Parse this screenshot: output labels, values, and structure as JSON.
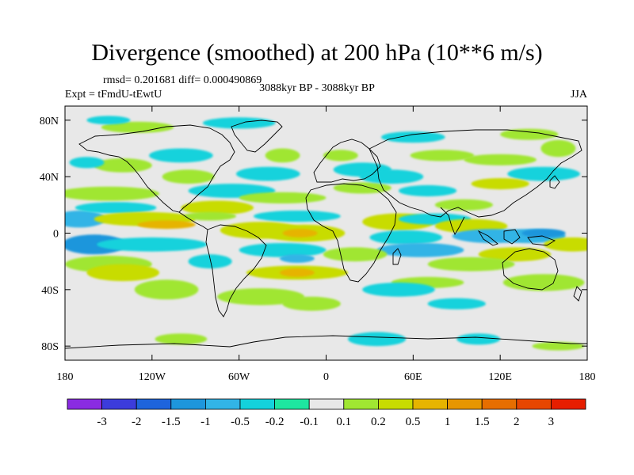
{
  "title": "Divergence (smoothed) at 200 hPa (10**6 m/s)",
  "stats": "rmsd= 0.201681  diff= 0.000490869",
  "left_label": "Expt = tFmdU-tEwtU",
  "center_label": "3088kyr BP - 3088kyr BP",
  "right_label": "JJA",
  "chart_data": {
    "type": "heatmap",
    "title": "Divergence (smoothed) at 200 hPa (10**6 m/s)",
    "xlabel": "",
    "ylabel": "",
    "xlim": [
      -180,
      180
    ],
    "ylim": [
      -90,
      90
    ],
    "x_ticks": [
      {
        "value": -180,
        "label": "180"
      },
      {
        "value": -120,
        "label": "120W"
      },
      {
        "value": -60,
        "label": "60W"
      },
      {
        "value": 0,
        "label": "0"
      },
      {
        "value": 60,
        "label": "60E"
      },
      {
        "value": 120,
        "label": "120E"
      },
      {
        "value": 180,
        "label": "180"
      }
    ],
    "y_ticks": [
      {
        "value": 80,
        "label": "80N"
      },
      {
        "value": 40,
        "label": "40N"
      },
      {
        "value": 0,
        "label": "0"
      },
      {
        "value": -40,
        "label": "40S"
      },
      {
        "value": -80,
        "label": "80S"
      }
    ],
    "colorbar": {
      "colors": [
        "#8a2be2",
        "#3c3cdc",
        "#1e64dc",
        "#1e96dc",
        "#32b4e6",
        "#14d2dc",
        "#1ee6a0",
        "#e8e8e8",
        "#a0e632",
        "#c8dc00",
        "#e6b400",
        "#e69600",
        "#e66e00",
        "#e64600",
        "#e61e00"
      ],
      "levels": [
        "-3",
        "-2",
        "-1.5",
        "-1",
        "-0.5",
        "-0.2",
        "-0.1",
        "0.1",
        "0.2",
        "0.5",
        "1",
        "1.5",
        "2",
        "3"
      ]
    },
    "background_color": "#e8e8e8",
    "features": [
      {
        "lon": -170,
        "lat": 10,
        "rx": 18,
        "ry": 6,
        "level": -0.5
      },
      {
        "lon": -160,
        "lat": -8,
        "rx": 22,
        "ry": 7,
        "level": -1
      },
      {
        "lon": -145,
        "lat": 18,
        "rx": 28,
        "ry": 4,
        "level": -0.2
      },
      {
        "lon": -150,
        "lat": 28,
        "rx": 35,
        "ry": 5,
        "level": 0.2
      },
      {
        "lon": -125,
        "lat": 10,
        "rx": 35,
        "ry": 5,
        "level": 0.5
      },
      {
        "lon": -110,
        "lat": 6,
        "rx": 20,
        "ry": 3,
        "level": 1
      },
      {
        "lon": -150,
        "lat": -22,
        "rx": 30,
        "ry": 6,
        "level": 0.2
      },
      {
        "lon": -140,
        "lat": -28,
        "rx": 25,
        "ry": 6,
        "level": 0.5
      },
      {
        "lon": -120,
        "lat": -8,
        "rx": 38,
        "ry": 5,
        "level": -0.2
      },
      {
        "lon": -110,
        "lat": -40,
        "rx": 22,
        "ry": 7,
        "level": 0.2
      },
      {
        "lon": -140,
        "lat": 48,
        "rx": 20,
        "ry": 5,
        "level": 0.2
      },
      {
        "lon": -165,
        "lat": 50,
        "rx": 12,
        "ry": 4,
        "level": -0.2
      },
      {
        "lon": -100,
        "lat": 55,
        "rx": 22,
        "ry": 5,
        "level": -0.2
      },
      {
        "lon": -95,
        "lat": 40,
        "rx": 18,
        "ry": 5,
        "level": 0.2
      },
      {
        "lon": -75,
        "lat": 18,
        "rx": 25,
        "ry": 5,
        "level": 0.5
      },
      {
        "lon": -80,
        "lat": 12,
        "rx": 18,
        "ry": 3,
        "level": 0.2
      },
      {
        "lon": -65,
        "lat": 30,
        "rx": 30,
        "ry": 5,
        "level": -0.2
      },
      {
        "lon": -40,
        "lat": 42,
        "rx": 22,
        "ry": 5,
        "level": -0.2
      },
      {
        "lon": -30,
        "lat": 55,
        "rx": 12,
        "ry": 5,
        "level": 0.2
      },
      {
        "lon": -60,
        "lat": 78,
        "rx": 25,
        "ry": 4,
        "level": -0.2
      },
      {
        "lon": -130,
        "lat": 75,
        "rx": 25,
        "ry": 4,
        "level": 0.2
      },
      {
        "lon": -30,
        "lat": 25,
        "rx": 30,
        "ry": 4,
        "level": 0.2
      },
      {
        "lon": -20,
        "lat": 12,
        "rx": 30,
        "ry": 4,
        "level": -0.2
      },
      {
        "lon": -45,
        "lat": 2,
        "rx": 28,
        "ry": 6,
        "level": 0.5
      },
      {
        "lon": -15,
        "lat": 0,
        "rx": 28,
        "ry": 6,
        "level": 0.5
      },
      {
        "lon": -18,
        "lat": 0,
        "rx": 12,
        "ry": 3,
        "level": 1
      },
      {
        "lon": -30,
        "lat": -12,
        "rx": 30,
        "ry": 5,
        "level": -0.2
      },
      {
        "lon": -20,
        "lat": -18,
        "rx": 12,
        "ry": 3,
        "level": -0.5
      },
      {
        "lon": -20,
        "lat": -28,
        "rx": 35,
        "ry": 5,
        "level": 0.5
      },
      {
        "lon": -20,
        "lat": -28,
        "rx": 12,
        "ry": 3,
        "level": 1
      },
      {
        "lon": -45,
        "lat": -45,
        "rx": 30,
        "ry": 6,
        "level": 0.2
      },
      {
        "lon": -10,
        "lat": -50,
        "rx": 20,
        "ry": 5,
        "level": 0.2
      },
      {
        "lon": -80,
        "lat": -20,
        "rx": 15,
        "ry": 5,
        "level": -0.2
      },
      {
        "lon": -100,
        "lat": -75,
        "rx": 18,
        "ry": 4,
        "level": 0.2
      },
      {
        "lon": 10,
        "lat": 55,
        "rx": 12,
        "ry": 4,
        "level": 0.2
      },
      {
        "lon": 25,
        "lat": 45,
        "rx": 20,
        "ry": 5,
        "level": -0.2
      },
      {
        "lon": 25,
        "lat": 32,
        "rx": 20,
        "ry": 4,
        "level": 0.2
      },
      {
        "lon": 45,
        "lat": 40,
        "rx": 22,
        "ry": 5,
        "level": -0.2
      },
      {
        "lon": 70,
        "lat": 30,
        "rx": 20,
        "ry": 4,
        "level": -0.2
      },
      {
        "lon": 95,
        "lat": 20,
        "rx": 20,
        "ry": 4,
        "level": 0.2
      },
      {
        "lon": 80,
        "lat": 55,
        "rx": 22,
        "ry": 4,
        "level": 0.2
      },
      {
        "lon": 60,
        "lat": 68,
        "rx": 22,
        "ry": 4,
        "level": -0.2
      },
      {
        "lon": 140,
        "lat": 70,
        "rx": 20,
        "ry": 4,
        "level": 0.2
      },
      {
        "lon": 160,
        "lat": 60,
        "rx": 12,
        "ry": 6,
        "level": 0.2
      },
      {
        "lon": 150,
        "lat": 42,
        "rx": 25,
        "ry": 5,
        "level": -0.2
      },
      {
        "lon": 120,
        "lat": 52,
        "rx": 25,
        "ry": 4,
        "level": 0.2
      },
      {
        "lon": 120,
        "lat": 35,
        "rx": 20,
        "ry": 4,
        "level": 0.5
      },
      {
        "lon": 50,
        "lat": 8,
        "rx": 25,
        "ry": 6,
        "level": 0.5
      },
      {
        "lon": 55,
        "lat": -3,
        "rx": 25,
        "ry": 5,
        "level": -0.2
      },
      {
        "lon": 65,
        "lat": -12,
        "rx": 30,
        "ry": 5,
        "level": -0.5
      },
      {
        "lon": 75,
        "lat": 10,
        "rx": 25,
        "ry": 4,
        "level": -0.2
      },
      {
        "lon": 100,
        "lat": 5,
        "rx": 25,
        "ry": 5,
        "level": 0.5
      },
      {
        "lon": 115,
        "lat": -2,
        "rx": 28,
        "ry": 5,
        "level": -0.5
      },
      {
        "lon": 140,
        "lat": -2,
        "rx": 25,
        "ry": 5,
        "level": -0.5
      },
      {
        "lon": 150,
        "lat": 0,
        "rx": 15,
        "ry": 3,
        "level": -1
      },
      {
        "lon": 130,
        "lat": -15,
        "rx": 25,
        "ry": 5,
        "level": 0.5
      },
      {
        "lon": 170,
        "lat": -8,
        "rx": 20,
        "ry": 5,
        "level": 0.5
      },
      {
        "lon": 100,
        "lat": -22,
        "rx": 30,
        "ry": 5,
        "level": 0.2
      },
      {
        "lon": 150,
        "lat": -35,
        "rx": 28,
        "ry": 6,
        "level": 0.2
      },
      {
        "lon": 70,
        "lat": -35,
        "rx": 25,
        "ry": 4,
        "level": 0.2
      },
      {
        "lon": 50,
        "lat": -40,
        "rx": 25,
        "ry": 5,
        "level": -0.2
      },
      {
        "lon": 90,
        "lat": -50,
        "rx": 20,
        "ry": 4,
        "level": -0.2
      },
      {
        "lon": 20,
        "lat": -15,
        "rx": 22,
        "ry": 5,
        "level": 0.2
      },
      {
        "lon": 35,
        "lat": -75,
        "rx": 20,
        "ry": 5,
        "level": -0.2
      },
      {
        "lon": 105,
        "lat": -75,
        "rx": 15,
        "ry": 4,
        "level": -0.2
      },
      {
        "lon": 160,
        "lat": -80,
        "rx": 18,
        "ry": 3,
        "level": 0.2
      },
      {
        "lon": -150,
        "lat": 80,
        "rx": 15,
        "ry": 3,
        "level": -0.2
      }
    ]
  }
}
